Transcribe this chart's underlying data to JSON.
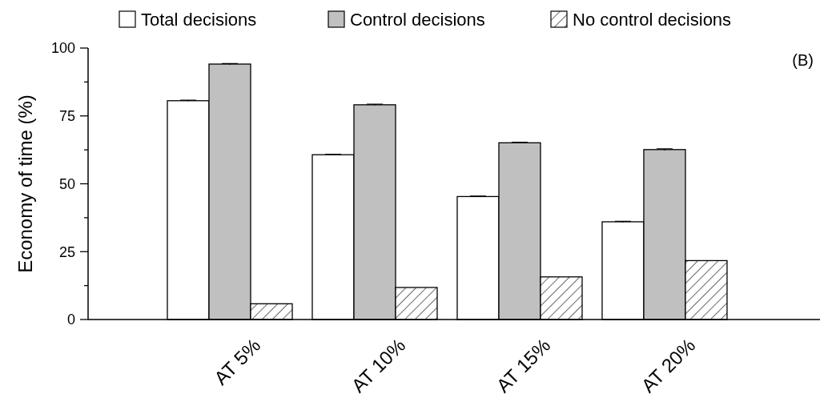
{
  "chart_data": {
    "type": "bar",
    "ylabel": "Economy of time (%)",
    "annotations": [
      "(B)"
    ],
    "categories": [
      "AT 5%",
      "AT 10%",
      "AT 15%",
      "AT 20%"
    ],
    "series": [
      {
        "name": "Total decisions",
        "color": "#ffffff",
        "values": [
          80.6,
          60.7,
          45.3,
          36.0
        ],
        "errors": [
          0.2,
          0.2,
          0.2,
          0.2
        ]
      },
      {
        "name": "Control decisions",
        "color": "#c0c0c0",
        "values": [
          94.1,
          79.1,
          65.1,
          62.6
        ],
        "errors": [
          0.2,
          0.2,
          0.2,
          0.3
        ]
      },
      {
        "name": "No control decisions",
        "color": "#000000",
        "values": [
          5.8,
          11.8,
          15.7,
          21.7
        ]
      }
    ],
    "ylim": [
      0,
      100
    ],
    "yticks": [
      0,
      {
        "value": 12.5,
        "label": null
      },
      25,
      {
        "value": 37.5,
        "label": null
      },
      50,
      {
        "value": 62.5,
        "label": null
      },
      75,
      {
        "value": 87.5,
        "label": null
      },
      100
    ],
    "legend": "top",
    "grid": false
  }
}
